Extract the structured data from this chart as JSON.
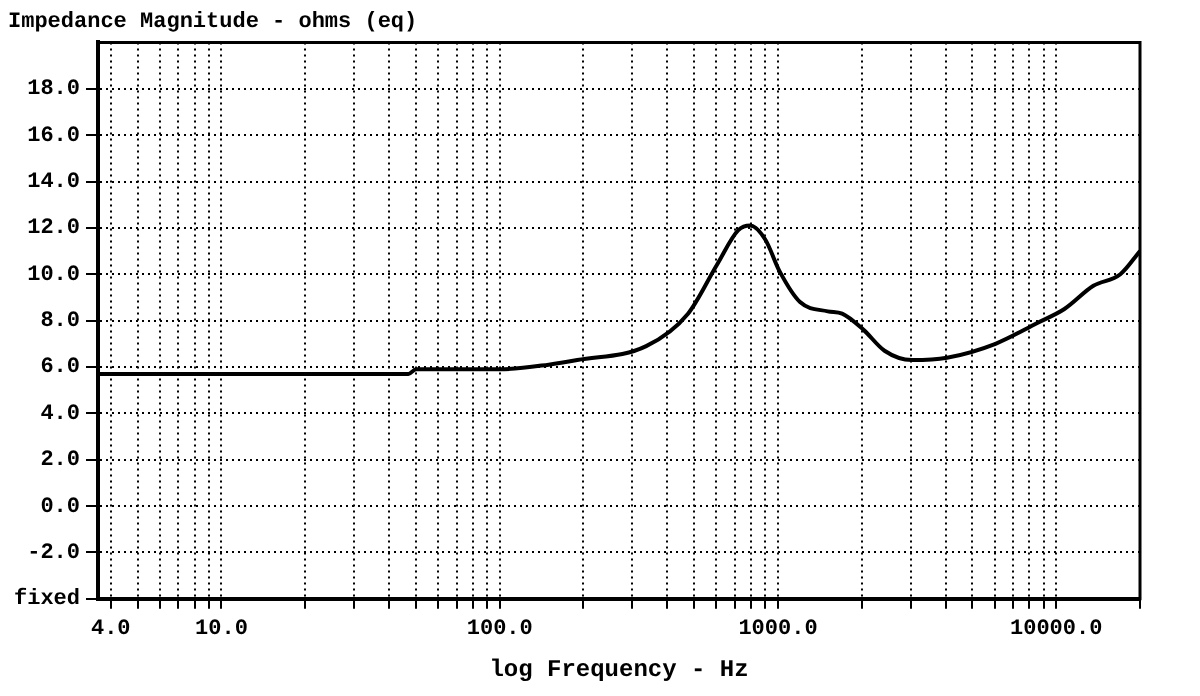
{
  "chart_data": {
    "type": "line",
    "title": "Impedance Magnitude - ohms (eq)",
    "xlabel": "log Frequency - Hz",
    "log": "x",
    "grid": true,
    "legend": false,
    "marker": "none",
    "line_style": "solid",
    "x": [
      3.6,
      20,
      47,
      50,
      100,
      150,
      190,
      336,
      475,
      603,
      720,
      795,
      900,
      1016,
      1200,
      1510,
      1700,
      2030,
      2415,
      3030,
      4050,
      6050,
      8550,
      10700,
      13600,
      17000,
      20000
    ],
    "series": [
      {
        "color": "#000000",
        "values": [
          5.7,
          5.7,
          5.7,
          5.9,
          5.9,
          6.1,
          6.3,
          6.9,
          8.3,
          10.4,
          11.9,
          12.1,
          11.5,
          10.1,
          8.8,
          8.4,
          8.3,
          7.6,
          6.7,
          6.3,
          6.4,
          7.0,
          7.9,
          8.5,
          9.5,
          10.0,
          11.0
        ]
      }
    ],
    "xlim": [
      3.6,
      20000
    ],
    "ylim": [
      -4,
      20
    ],
    "xticks": [
      {
        "value": 4,
        "label": "4.0"
      },
      {
        "value": 5,
        "label": null
      },
      {
        "value": 6,
        "label": null
      },
      {
        "value": 7,
        "label": null
      },
      {
        "value": 8,
        "label": null
      },
      {
        "value": 9,
        "label": null
      },
      {
        "value": 10,
        "label": "10.0"
      },
      {
        "value": 20,
        "label": null
      },
      {
        "value": 30,
        "label": null
      },
      {
        "value": 40,
        "label": null
      },
      {
        "value": 50,
        "label": null
      },
      {
        "value": 60,
        "label": null
      },
      {
        "value": 70,
        "label": null
      },
      {
        "value": 80,
        "label": null
      },
      {
        "value": 90,
        "label": null
      },
      {
        "value": 100,
        "label": "100.0"
      },
      {
        "value": 200,
        "label": null
      },
      {
        "value": 300,
        "label": null
      },
      {
        "value": 400,
        "label": null
      },
      {
        "value": 500,
        "label": null
      },
      {
        "value": 600,
        "label": null
      },
      {
        "value": 700,
        "label": null
      },
      {
        "value": 800,
        "label": null
      },
      {
        "value": 900,
        "label": null
      },
      {
        "value": 1000,
        "label": "1000.0"
      },
      {
        "value": 2000,
        "label": null
      },
      {
        "value": 3000,
        "label": null
      },
      {
        "value": 4000,
        "label": null
      },
      {
        "value": 5000,
        "label": null
      },
      {
        "value": 6000,
        "label": null
      },
      {
        "value": 7000,
        "label": null
      },
      {
        "value": 8000,
        "label": null
      },
      {
        "value": 9000,
        "label": null
      },
      {
        "value": 10000,
        "label": "10000.0"
      },
      {
        "value": 20000,
        "label": null
      }
    ],
    "yticks": [
      {
        "value": -4,
        "label": "fixed"
      },
      {
        "value": -2,
        "label": "-2.0"
      },
      {
        "value": 0,
        "label": "0.0"
      },
      {
        "value": 2,
        "label": "2.0"
      },
      {
        "value": 4,
        "label": "4.0"
      },
      {
        "value": 6,
        "label": "6.0"
      },
      {
        "value": 8,
        "label": "8.0"
      },
      {
        "value": 10,
        "label": "10.0"
      },
      {
        "value": 12,
        "label": "12.0"
      },
      {
        "value": 14,
        "label": "14.0"
      },
      {
        "value": 16,
        "label": "16.0"
      },
      {
        "value": 18,
        "label": "18.0"
      }
    ]
  }
}
